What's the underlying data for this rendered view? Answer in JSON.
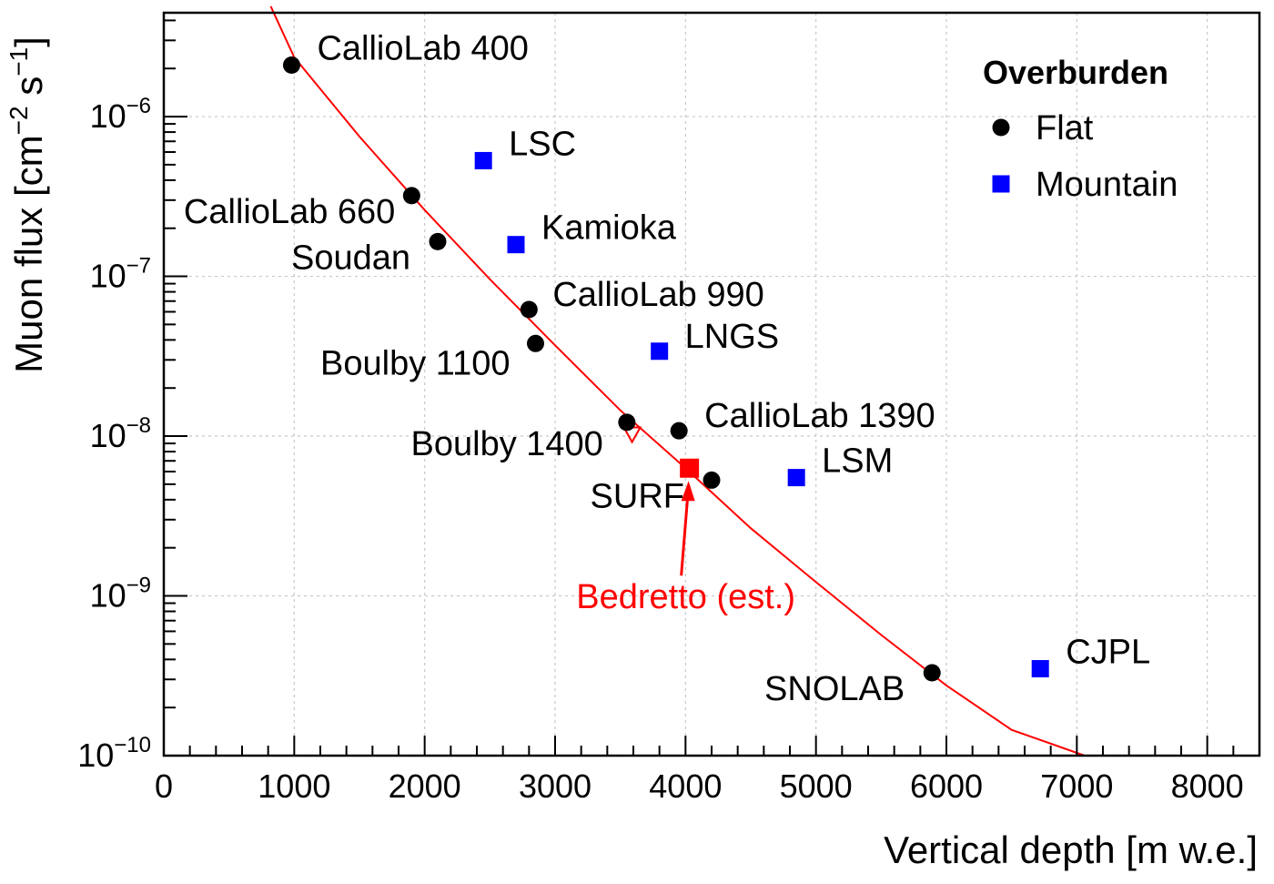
{
  "chart_data": {
    "type": "scatter",
    "xlabel": "Vertical depth [m w.e.]",
    "ylabel_main": "Muon flux [cm",
    "ylabel_exp1": "−2",
    "ylabel_mid": " s",
    "ylabel_exp2": "−1",
    "ylabel_end": "]",
    "xlim": [
      0,
      8400
    ],
    "ylim_log10": [
      -10,
      -5.35
    ],
    "y_scale": "log",
    "grid": true,
    "x_ticks": [
      0,
      1000,
      2000,
      3000,
      4000,
      5000,
      6000,
      7000,
      8000
    ],
    "x_tick_labels": [
      "0",
      "1000",
      "2000",
      "3000",
      "4000",
      "5000",
      "6000",
      "7000",
      "8000"
    ],
    "y_ticks": [
      {
        "exp": -6,
        "base": "10",
        "sup": "−6"
      },
      {
        "exp": -7,
        "base": "10",
        "sup": "−7"
      },
      {
        "exp": -8,
        "base": "10",
        "sup": "−8"
      },
      {
        "exp": -9,
        "base": "10",
        "sup": "−9"
      },
      {
        "exp": -10,
        "base": "10",
        "sup": "−10"
      }
    ],
    "legend": {
      "title": "Overburden",
      "position": "top-right",
      "entries": [
        {
          "name": "Flat",
          "marker": "circle",
          "color": "#000000"
        },
        {
          "name": "Mountain",
          "marker": "square",
          "color": "#0000ff"
        }
      ]
    },
    "series": [
      {
        "name": "Flat",
        "marker": "circle",
        "color": "#000000",
        "points": [
          {
            "label": "CallioLab 400",
            "x": 980,
            "y": 2.1e-06,
            "label_pos": "right"
          },
          {
            "label": "CallioLab 660",
            "x": 1900,
            "y": 3.2e-07,
            "label_pos": "below-left"
          },
          {
            "label": "Soudan",
            "x": 2100,
            "y": 1.65e-07,
            "label_pos": "left"
          },
          {
            "label": "CallioLab 990",
            "x": 2800,
            "y": 6.2e-08,
            "label_pos": "above-right"
          },
          {
            "label": "Boulby 1100",
            "x": 2850,
            "y": 3.8e-08,
            "label_pos": "left"
          },
          {
            "label": "Boulby 1400",
            "x": 3550,
            "y": 1.22e-08,
            "label_pos": "left"
          },
          {
            "label": "CallioLab 1390",
            "x": 3950,
            "y": 1.08e-08,
            "label_pos": "right"
          },
          {
            "label": "SURF",
            "x": 4200,
            "y": 5.3e-09,
            "label_pos": "left"
          },
          {
            "label": "SNOLAB",
            "x": 5890,
            "y": 3.3e-10,
            "label_pos": "left"
          }
        ]
      },
      {
        "name": "Mountain",
        "marker": "square",
        "color": "#0000ff",
        "points": [
          {
            "label": "LSC",
            "x": 2450,
            "y": 5.3e-07,
            "label_pos": "right"
          },
          {
            "label": "Kamioka",
            "x": 2700,
            "y": 1.58e-07,
            "label_pos": "right"
          },
          {
            "label": "LNGS",
            "x": 3800,
            "y": 3.4e-08,
            "label_pos": "right"
          },
          {
            "label": "LSM",
            "x": 4850,
            "y": 5.5e-09,
            "label_pos": "right"
          },
          {
            "label": "CJPL",
            "x": 6720,
            "y": 3.5e-10,
            "label_pos": "right"
          }
        ]
      }
    ],
    "estimate": {
      "label": "Bedretto (est.)",
      "x": 4030,
      "y": 6.3e-09,
      "color": "#ff0000",
      "marker": "square"
    },
    "open_marker": {
      "x": 3590,
      "y": 1.02e-08,
      "color": "#ff0000",
      "marker": "open-triangle-down"
    },
    "fit_curve": {
      "color": "#ff0000",
      "points": [
        [
          820,
          4.9e-06
        ],
        [
          1000,
          2.35e-06
        ],
        [
          1500,
          7.5e-07
        ],
        [
          2000,
          2.6e-07
        ],
        [
          2500,
          9.6e-08
        ],
        [
          3000,
          3.7e-08
        ],
        [
          3500,
          1.45e-08
        ],
        [
          4000,
          6.3e-09
        ],
        [
          4500,
          2.65e-09
        ],
        [
          5000,
          1.22e-09
        ],
        [
          5500,
          5.7e-10
        ],
        [
          6000,
          2.75e-10
        ],
        [
          6500,
          1.45e-10
        ],
        [
          7060,
          1e-10
        ]
      ]
    }
  }
}
